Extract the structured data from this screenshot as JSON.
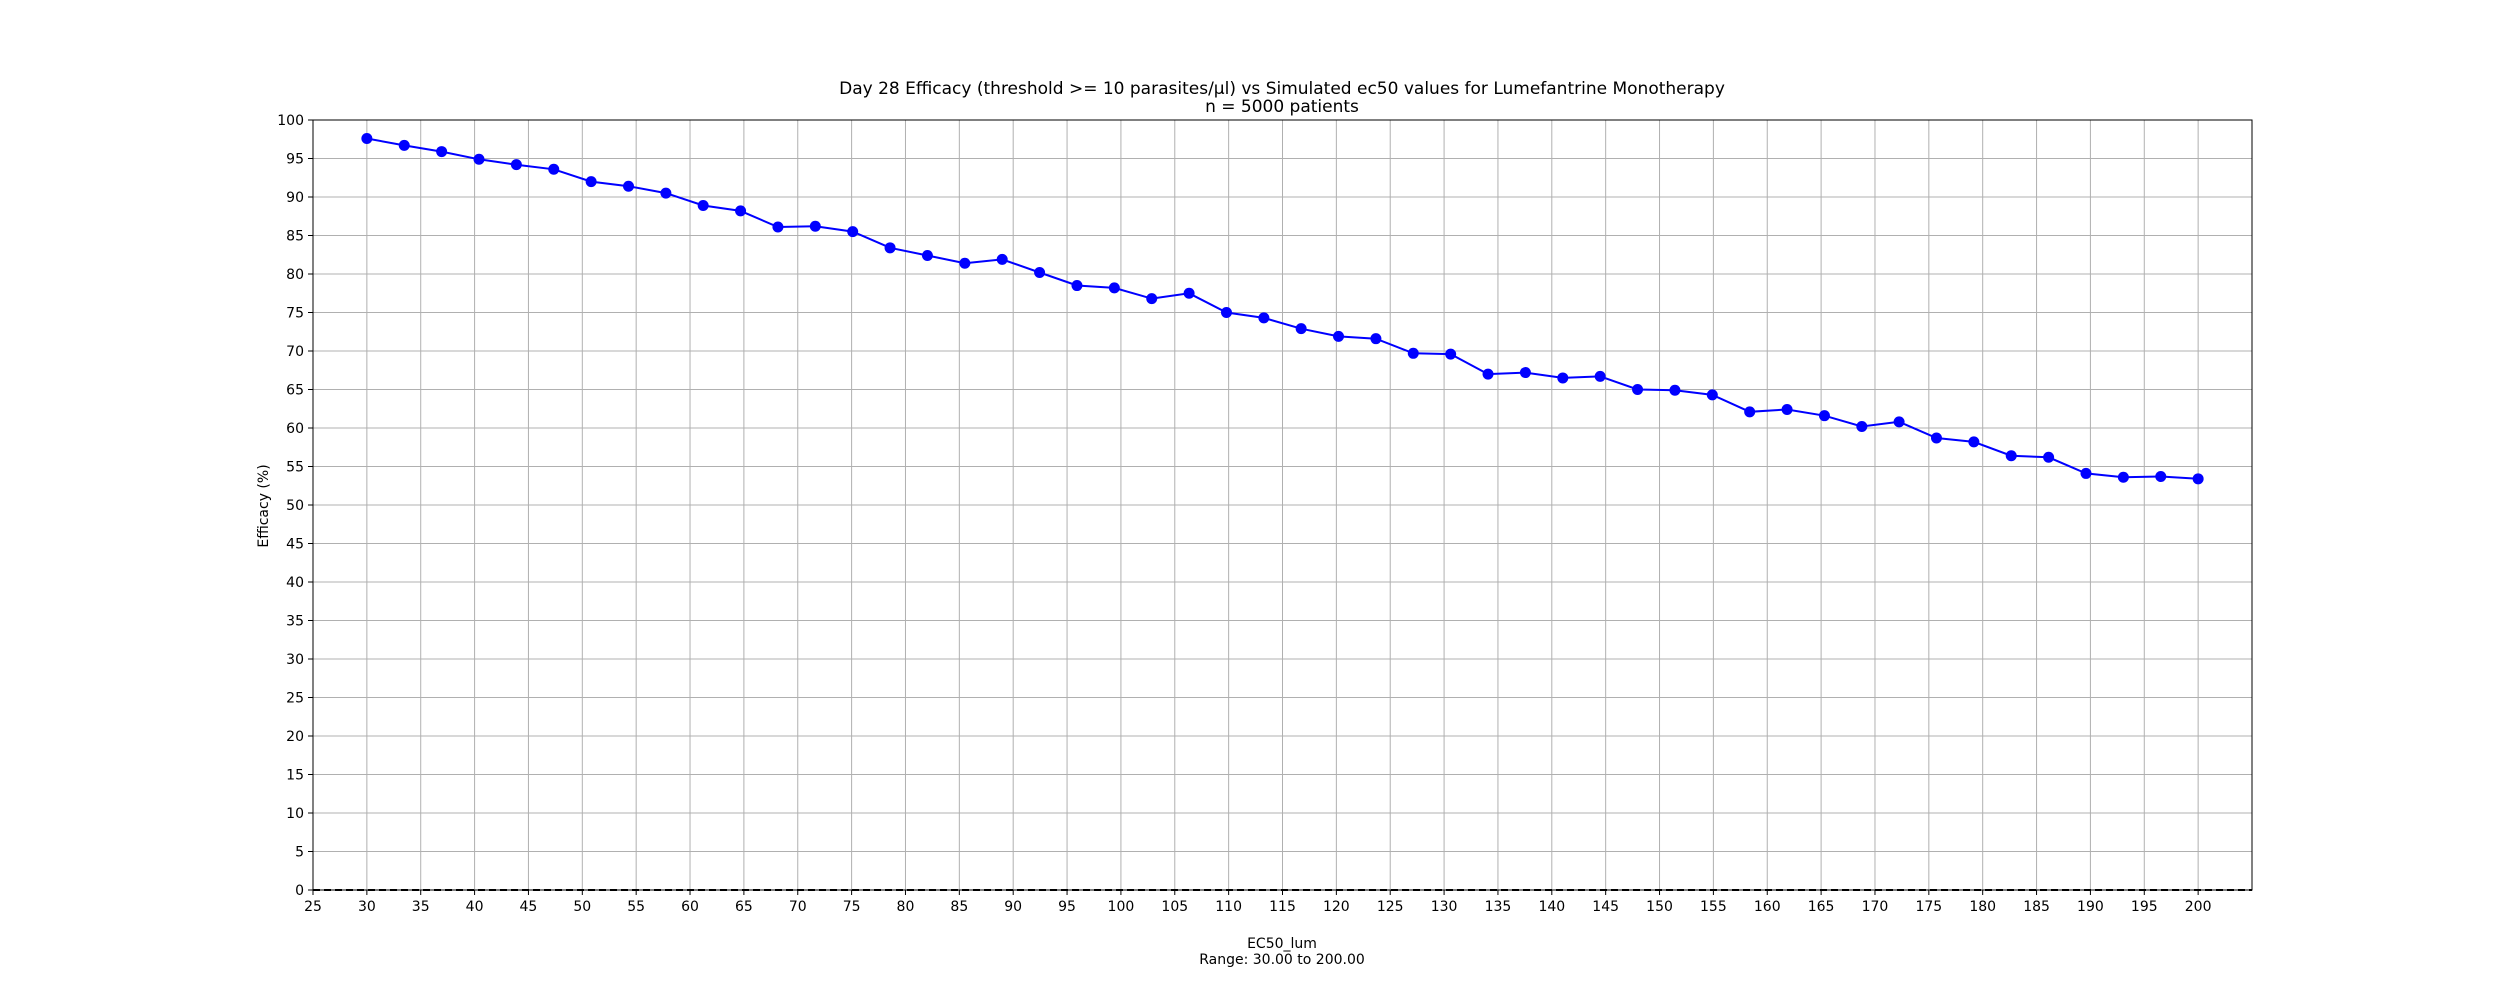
{
  "chart_data": {
    "type": "line",
    "title": "Day 28 Efficacy (threshold >= 10 parasites/µl) vs Simulated ec50 values for  Lumefantrine Monotherapy",
    "subtitle": "n = 5000 patients",
    "xlabel": "EC50_lum",
    "xlabel_note": "Range: 30.00 to 200.00",
    "ylabel": "Efficacy (%)",
    "xlim": [
      25,
      205
    ],
    "ylim": [
      0,
      100
    ],
    "x_ticks": [
      "25",
      "30",
      "35",
      "40",
      "45",
      "50",
      "55",
      "60",
      "65",
      "70",
      "75",
      "80",
      "85",
      "90",
      "95",
      "100",
      "105",
      "110",
      "115",
      "120",
      "125",
      "130",
      "135",
      "140",
      "145",
      "150",
      "155",
      "160",
      "165",
      "170",
      "175",
      "180",
      "185",
      "190",
      "195",
      "200"
    ],
    "y_ticks": [
      "0",
      "5",
      "10",
      "15",
      "20",
      "25",
      "30",
      "35",
      "40",
      "45",
      "50",
      "55",
      "60",
      "65",
      "70",
      "75",
      "80",
      "85",
      "90",
      "95",
      "100"
    ],
    "grid": true,
    "reference_line": {
      "y": 0,
      "style": "dashed",
      "color": "#000000"
    },
    "series": [
      {
        "color": "#0000ff",
        "x": [
          30.0,
          33.47,
          36.94,
          40.41,
          43.88,
          47.35,
          50.82,
          54.29,
          57.76,
          61.22,
          64.69,
          68.16,
          71.63,
          75.1,
          78.57,
          82.04,
          85.51,
          88.98,
          92.45,
          95.92,
          99.39,
          102.86,
          106.33,
          109.8,
          113.27,
          116.73,
          120.2,
          123.67,
          127.14,
          130.61,
          134.08,
          137.55,
          141.02,
          144.49,
          147.96,
          151.43,
          154.9,
          158.37,
          161.84,
          165.31,
          168.78,
          172.24,
          175.71,
          179.18,
          182.65,
          186.12,
          189.59,
          193.06,
          196.53,
          200.0
        ],
        "y": [
          97.6,
          96.7,
          95.9,
          94.9,
          94.2,
          93.6,
          92.0,
          91.4,
          90.5,
          88.9,
          88.2,
          86.1,
          86.2,
          85.5,
          83.4,
          82.4,
          81.4,
          81.9,
          80.2,
          78.5,
          78.2,
          76.8,
          77.5,
          75.0,
          74.3,
          72.9,
          71.9,
          71.6,
          69.7,
          69.6,
          67.0,
          67.2,
          66.5,
          66.7,
          65.0,
          64.9,
          64.3,
          62.1,
          62.4,
          61.6,
          60.2,
          60.8,
          58.7,
          58.2,
          56.4,
          56.2,
          54.1,
          53.6,
          53.7,
          53.4
        ]
      }
    ]
  }
}
